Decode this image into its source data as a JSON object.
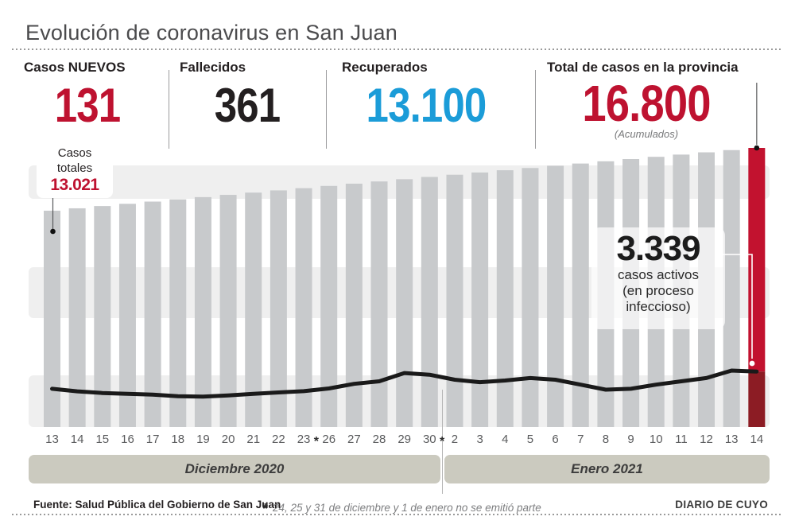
{
  "header": {
    "title": "Evolución de coronavirus en San Juan"
  },
  "stats": {
    "items": [
      {
        "label": "Casos NUEVOS",
        "value": "131",
        "color": "#be1230"
      },
      {
        "label": "Fallecidos",
        "value": "361",
        "color": "#231f20"
      },
      {
        "label": "Recuperados",
        "value": "13.100",
        "color": "#1b9cd8"
      },
      {
        "label": "Total de casos en la provincia",
        "value": "16.800",
        "sub": "(Acumulados)",
        "color": "#be1230"
      }
    ]
  },
  "chart_data": {
    "type": "bar",
    "title": "Evolución de coronavirus en San Juan",
    "categories": [
      "13",
      "14",
      "15",
      "16",
      "17",
      "18",
      "19",
      "20",
      "21",
      "22",
      "23",
      "26",
      "27",
      "28",
      "29",
      "30",
      "2",
      "3",
      "4",
      "5",
      "6",
      "7",
      "8",
      "9",
      "10",
      "11",
      "12",
      "13",
      "14"
    ],
    "series": [
      {
        "name": "Casos totales (acumulados)",
        "type": "bar",
        "values": [
          13021,
          13165,
          13300,
          13435,
          13569,
          13704,
          13839,
          13974,
          14109,
          14243,
          14378,
          14513,
          14648,
          14782,
          14917,
          15052,
          15187,
          15321,
          15456,
          15591,
          15726,
          15860,
          15995,
          16130,
          16264,
          16399,
          16534,
          16669,
          16800
        ]
      },
      {
        "name": "Casos activos (en proceso infeccioso)",
        "type": "line",
        "values": [
          2300,
          2150,
          2050,
          2000,
          1950,
          1850,
          1830,
          1900,
          2000,
          2080,
          2160,
          2320,
          2600,
          2750,
          3250,
          3150,
          2850,
          2700,
          2800,
          2950,
          2850,
          2550,
          2250,
          2300,
          2550,
          2750,
          2950,
          3400,
          3339
        ]
      }
    ],
    "ylim": [
      0,
      17000
    ],
    "grid": "horizontal-stripes",
    "legend": "none",
    "highlight_last_bar": true,
    "gap_markers": [
      {
        "after_index": 10,
        "symbol": "*"
      },
      {
        "after_index": 15,
        "symbol": "*"
      }
    ],
    "month_bands": [
      {
        "label": "Diciembre 2020",
        "from_index": 0,
        "to_index": 15
      },
      {
        "label": "Enero 2021",
        "from_index": 16,
        "to_index": 28
      }
    ],
    "annotations": {
      "first_bar": {
        "line1": "Casos",
        "line2": "totales",
        "value": "13.021"
      },
      "active": {
        "value": "3.339",
        "line1": "casos activos",
        "line2": "(en proceso",
        "line3": "infeccioso)"
      }
    }
  },
  "footer": {
    "source": "Fuente: Salud Pública del Gobierno de San Juan",
    "asterisk": "*",
    "note": "24, 25 y 31 de diciembre y 1 de enero no se emitió parte",
    "brand": "DIARIO DE CUYO"
  },
  "theme": {
    "red": "#c2122f",
    "dark_red": "#8c1c24",
    "blue": "#1b9cd8",
    "bar_gray": "#c8cacc",
    "stripe_gray": "#efefef",
    "month_band": "#cbcabf",
    "line_black": "#1a1a1a",
    "callout_gray": "#58595b",
    "separator_gray": "#b5b5b5"
  }
}
